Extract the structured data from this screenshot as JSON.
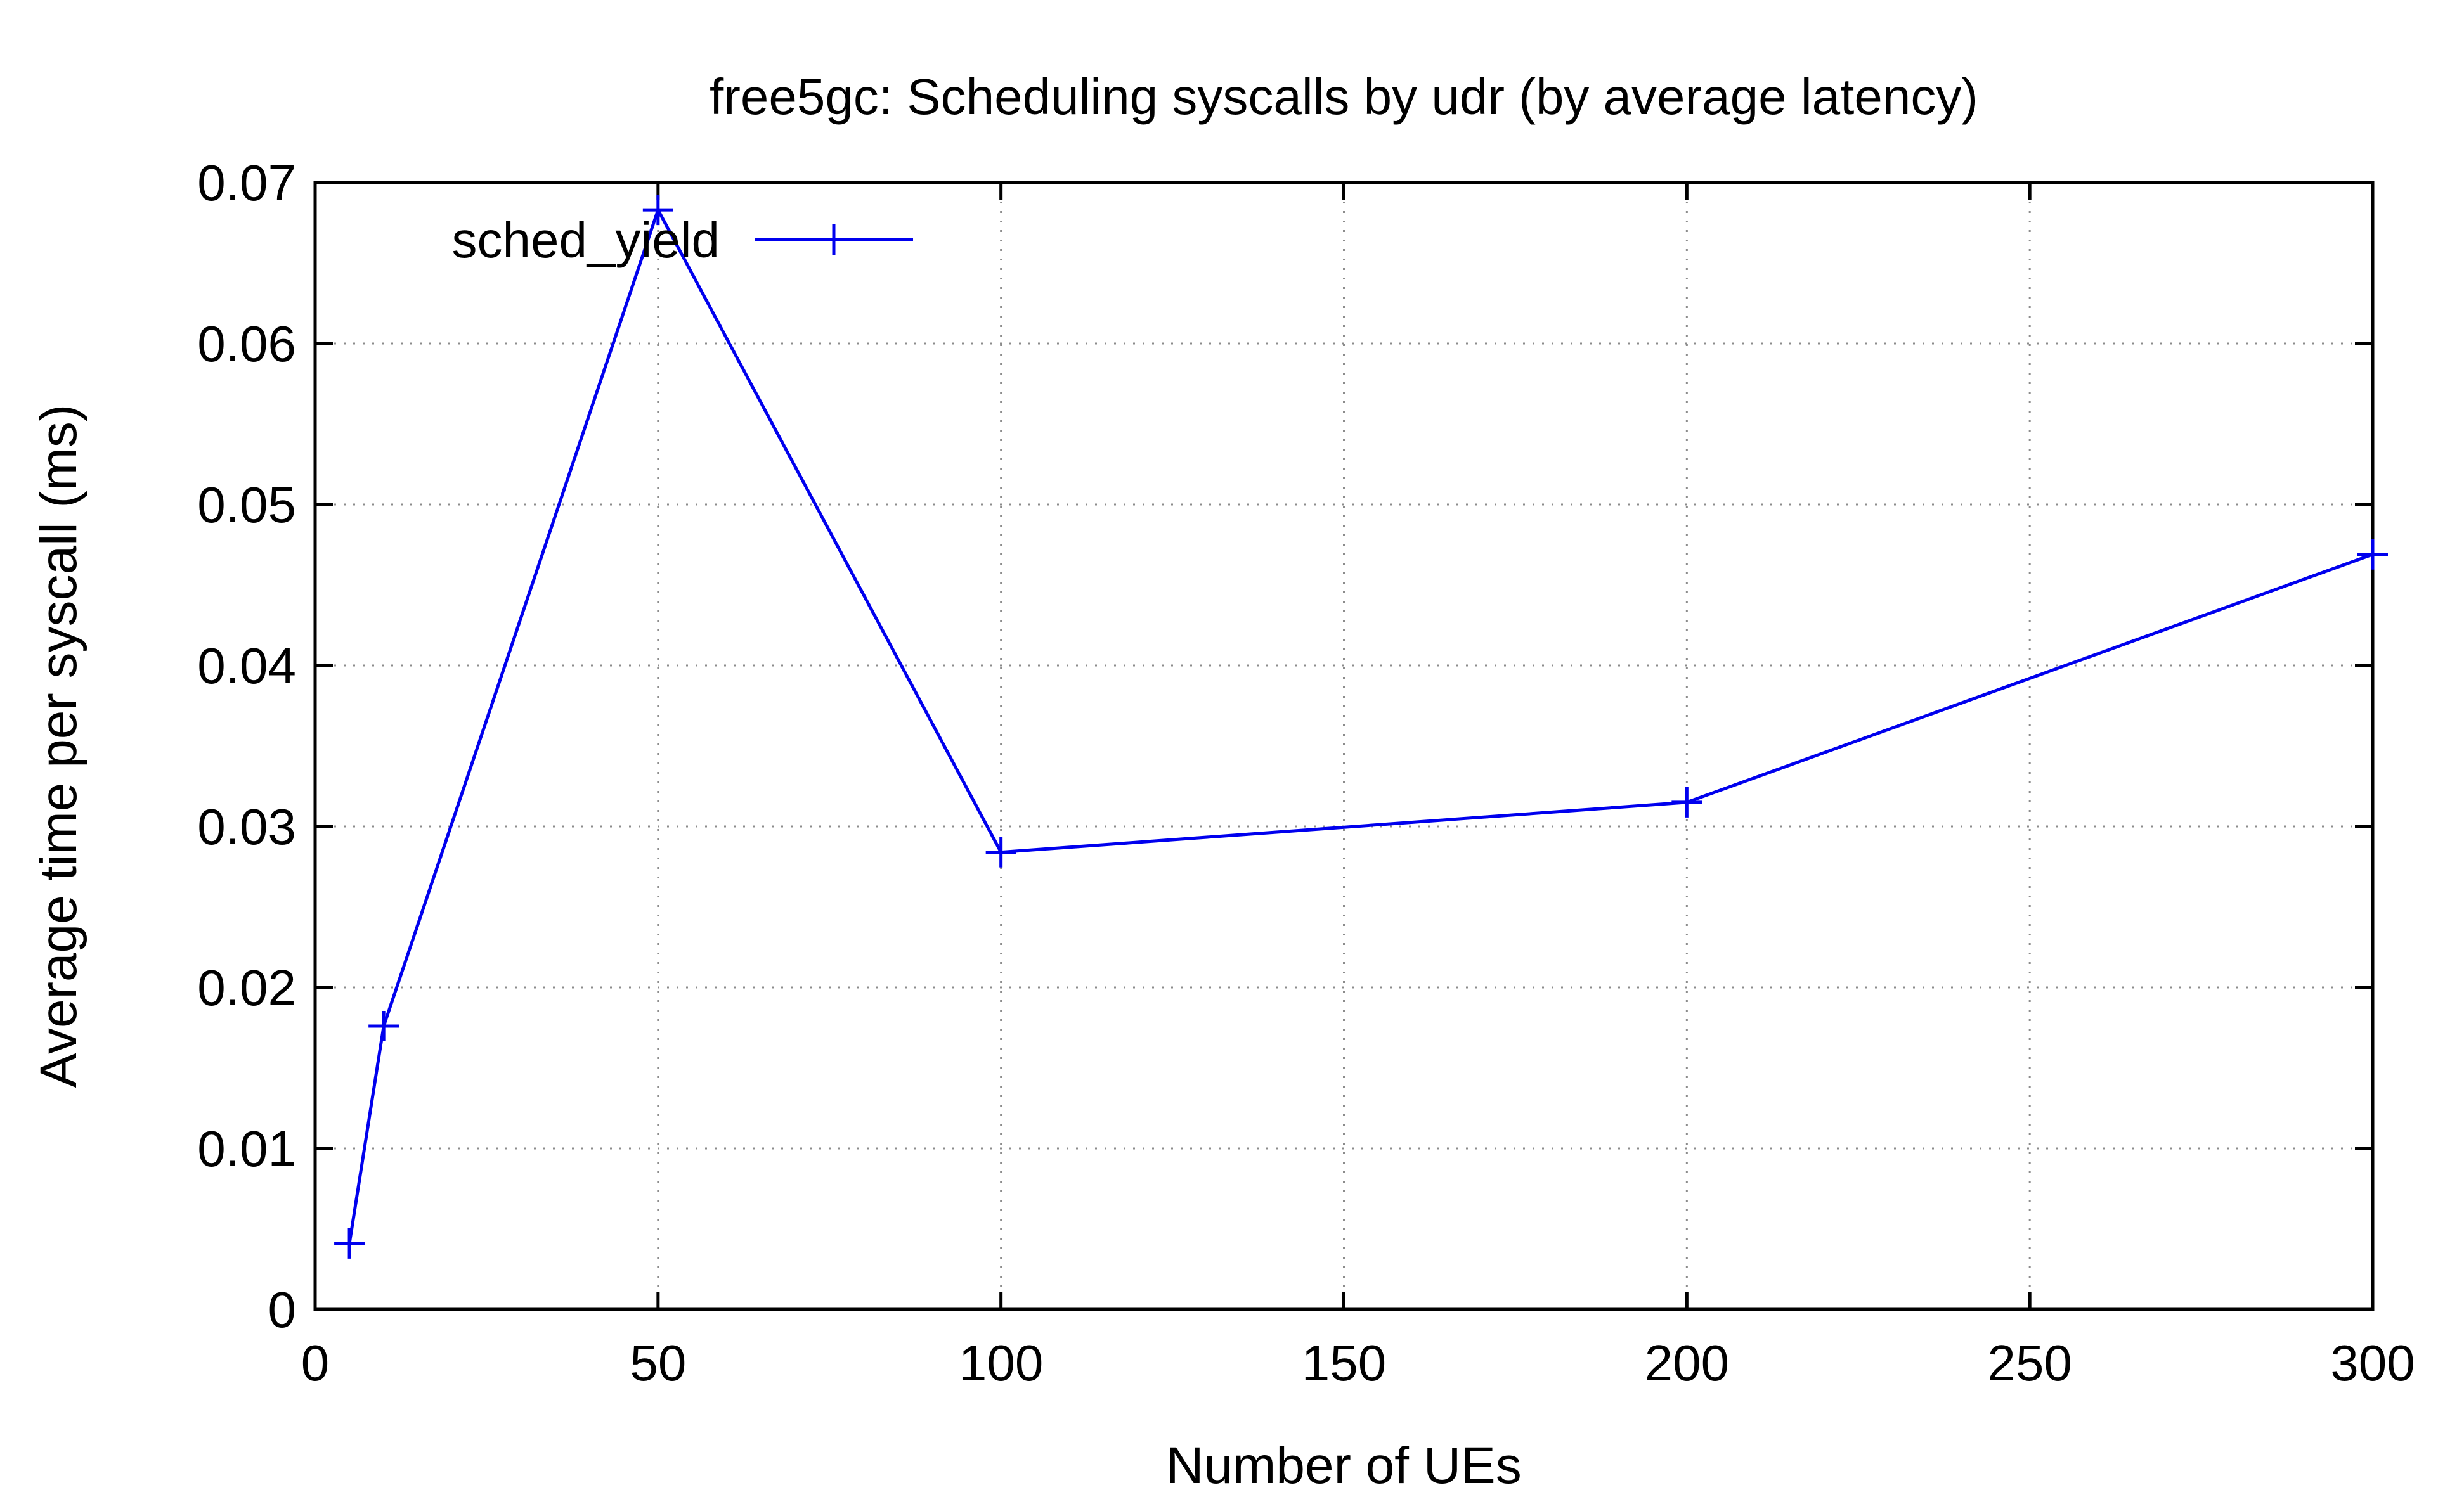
{
  "chart_data": {
    "type": "line",
    "title": "free5gc: Scheduling syscalls by udr (by average latency)",
    "xlabel": "Number of UEs",
    "ylabel": "Average time per syscall (ms)",
    "xlim": [
      0,
      300
    ],
    "ylim": [
      0,
      0.07
    ],
    "xticks": [
      0,
      50,
      100,
      150,
      200,
      250,
      300
    ],
    "xtick_labels": [
      "0",
      "50",
      "100",
      "150",
      "200",
      "250",
      "300"
    ],
    "yticks": [
      0,
      0.01,
      0.02,
      0.03,
      0.04,
      0.05,
      0.06,
      0.07
    ],
    "ytick_labels": [
      "0",
      "0.01",
      "0.02",
      "0.03",
      "0.04",
      "0.05",
      "0.06",
      "0.07"
    ],
    "grid": true,
    "legend_position": "top-left",
    "series": [
      {
        "name": "sched_yield",
        "color": "#0000ee",
        "marker": "plus",
        "x": [
          5,
          10,
          50,
          100,
          200,
          300
        ],
        "y": [
          0.0041,
          0.0176,
          0.0683,
          0.0284,
          0.0315,
          0.0469
        ]
      }
    ]
  }
}
